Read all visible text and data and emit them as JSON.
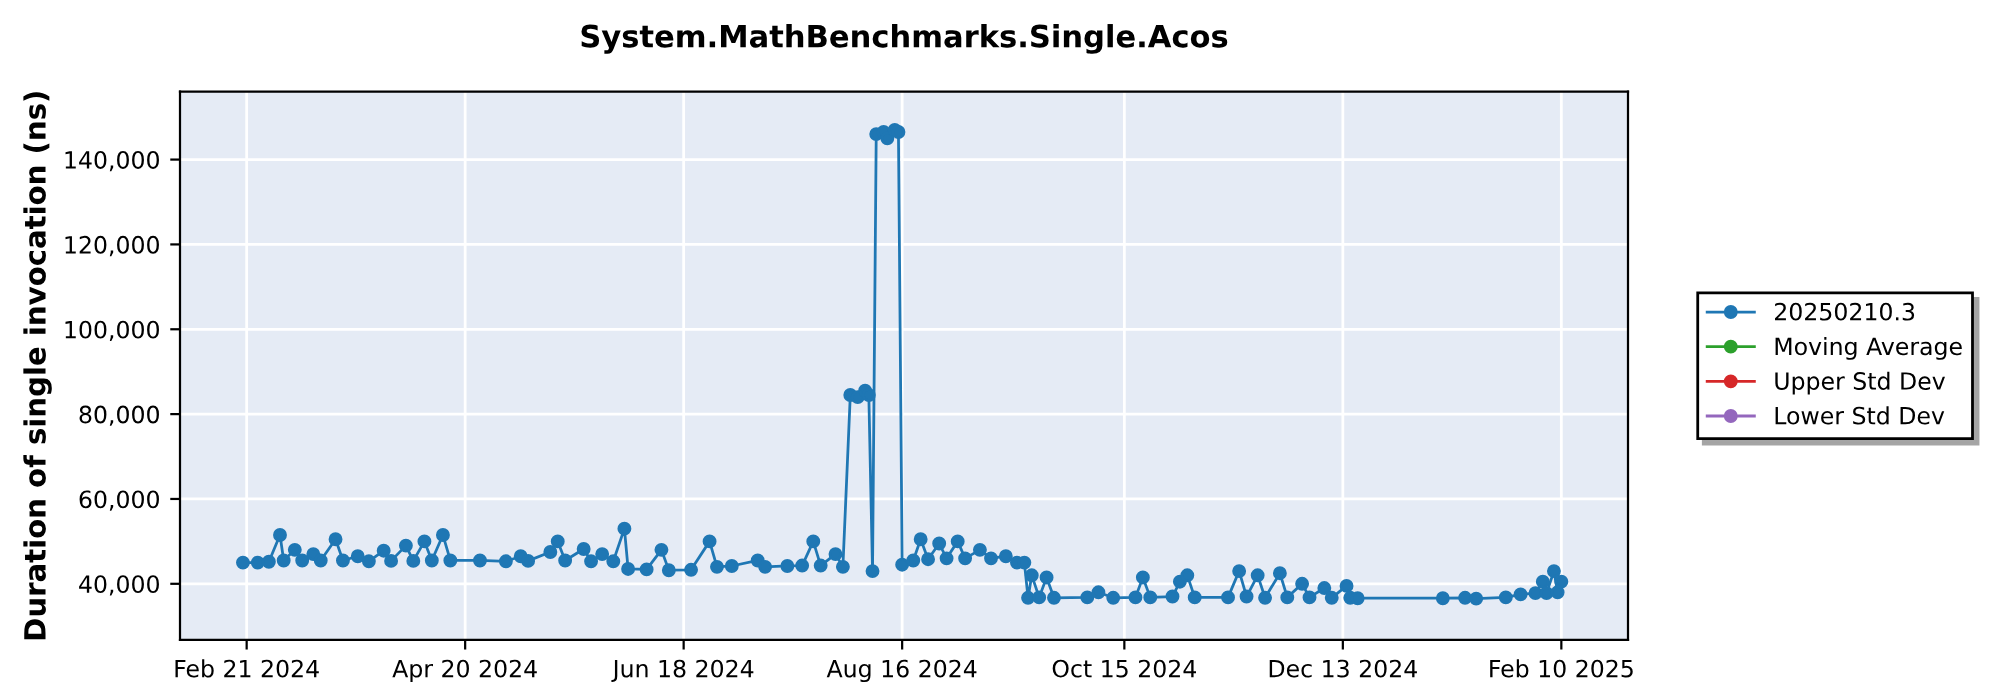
{
  "chart_data": {
    "type": "line",
    "title": "System.MathBenchmarks.Single.Acos",
    "ylabel": "Duration of single invocation (ns)",
    "xlim": [
      "2024-02-03",
      "2025-02-28"
    ],
    "ylim": [
      26800,
      156000
    ],
    "xticks": [
      {
        "value": "2024-02-21",
        "label": "Feb 21 2024"
      },
      {
        "value": "2024-04-20",
        "label": "Apr 20 2024"
      },
      {
        "value": "2024-06-18",
        "label": "Jun 18 2024"
      },
      {
        "value": "2024-08-16",
        "label": "Aug 16 2024"
      },
      {
        "value": "2024-10-15",
        "label": "Oct 15 2024"
      },
      {
        "value": "2024-12-13",
        "label": "Dec 13 2024"
      },
      {
        "value": "2025-02-10",
        "label": "Feb 10 2025"
      }
    ],
    "yticks": [
      {
        "value": 40000,
        "label": "40,000"
      },
      {
        "value": 60000,
        "label": "60,000"
      },
      {
        "value": 80000,
        "label": "80,000"
      },
      {
        "value": 100000,
        "label": "100,000"
      },
      {
        "value": 120000,
        "label": "120,000"
      },
      {
        "value": 140000,
        "label": "140,000"
      }
    ],
    "grid": true,
    "legend": "right",
    "marker": "circle",
    "line_style": "solid",
    "series": [
      {
        "name": "20250210.3",
        "color": "#1f77b4",
        "x": [
          "2024-02-20",
          "2024-02-24",
          "2024-02-27",
          "2024-03-01",
          "2024-03-02",
          "2024-03-05",
          "2024-03-07",
          "2024-03-10",
          "2024-03-12",
          "2024-03-16",
          "2024-03-18",
          "2024-03-22",
          "2024-03-25",
          "2024-03-29",
          "2024-03-31",
          "2024-04-04",
          "2024-04-06",
          "2024-04-09",
          "2024-04-11",
          "2024-04-14",
          "2024-04-16",
          "2024-04-24",
          "2024-05-01",
          "2024-05-05",
          "2024-05-07",
          "2024-05-13",
          "2024-05-15",
          "2024-05-17",
          "2024-05-22",
          "2024-05-24",
          "2024-05-27",
          "2024-05-30",
          "2024-06-02",
          "2024-06-03",
          "2024-06-08",
          "2024-06-12",
          "2024-06-14",
          "2024-06-20",
          "2024-06-25",
          "2024-06-27",
          "2024-07-01",
          "2024-07-08",
          "2024-07-10",
          "2024-07-16",
          "2024-07-20",
          "2024-07-23",
          "2024-07-25",
          "2024-07-29",
          "2024-07-31",
          "2024-08-02",
          "2024-08-04",
          "2024-08-06",
          "2024-08-07",
          "2024-08-08",
          "2024-08-09",
          "2024-08-11",
          "2024-08-12",
          "2024-08-14",
          "2024-08-15",
          "2024-08-16",
          "2024-08-19",
          "2024-08-21",
          "2024-08-23",
          "2024-08-26",
          "2024-08-28",
          "2024-08-31",
          "2024-09-02",
          "2024-09-06",
          "2024-09-09",
          "2024-09-13",
          "2024-09-16",
          "2024-09-18",
          "2024-09-19",
          "2024-09-20",
          "2024-09-22",
          "2024-09-24",
          "2024-09-26",
          "2024-10-05",
          "2024-10-08",
          "2024-10-12",
          "2024-10-18",
          "2024-10-20",
          "2024-10-22",
          "2024-10-28",
          "2024-10-30",
          "2024-11-01",
          "2024-11-03",
          "2024-11-12",
          "2024-11-15",
          "2024-11-17",
          "2024-11-20",
          "2024-11-22",
          "2024-11-26",
          "2024-11-28",
          "2024-12-02",
          "2024-12-04",
          "2024-12-08",
          "2024-12-10",
          "2024-12-14",
          "2024-12-15",
          "2024-12-17",
          "2025-01-09",
          "2025-01-15",
          "2025-01-18",
          "2025-01-26",
          "2025-01-30",
          "2025-02-03",
          "2025-02-05",
          "2025-02-06",
          "2025-02-08",
          "2025-02-09",
          "2025-02-10"
        ],
        "values": [
          45000,
          45000,
          45200,
          51500,
          45500,
          48000,
          45500,
          47000,
          45500,
          50500,
          45500,
          46500,
          45300,
          47800,
          45400,
          49000,
          45400,
          50000,
          45500,
          51500,
          45500,
          45500,
          45300,
          46500,
          45400,
          47500,
          50000,
          45500,
          48200,
          45300,
          47000,
          45300,
          53000,
          43500,
          43400,
          48000,
          43200,
          43300,
          50000,
          44000,
          44200,
          45500,
          44000,
          44200,
          44300,
          50000,
          44300,
          47000,
          44000,
          84500,
          84000,
          85500,
          84500,
          43000,
          146000,
          146500,
          145000,
          147000,
          146500,
          44500,
          45500,
          50500,
          45800,
          49500,
          46000,
          50000,
          46000,
          48000,
          46000,
          46500,
          45000,
          45000,
          36700,
          42000,
          36800,
          41500,
          36700,
          36800,
          38000,
          36700,
          36800,
          41500,
          36800,
          37000,
          40500,
          42000,
          36800,
          36800,
          43000,
          37000,
          42000,
          36700,
          42500,
          36800,
          40000,
          36800,
          39000,
          36700,
          39500,
          36700,
          36600,
          36600,
          36700,
          36500,
          36800,
          37500,
          37800,
          40500,
          37800,
          43000,
          38000,
          40500
        ]
      },
      {
        "name": "Moving Average",
        "color": "#2ca02c"
      },
      {
        "name": "Upper Std Dev",
        "color": "#d62728"
      },
      {
        "name": "Lower Std Dev",
        "color": "#9467bd"
      }
    ]
  }
}
